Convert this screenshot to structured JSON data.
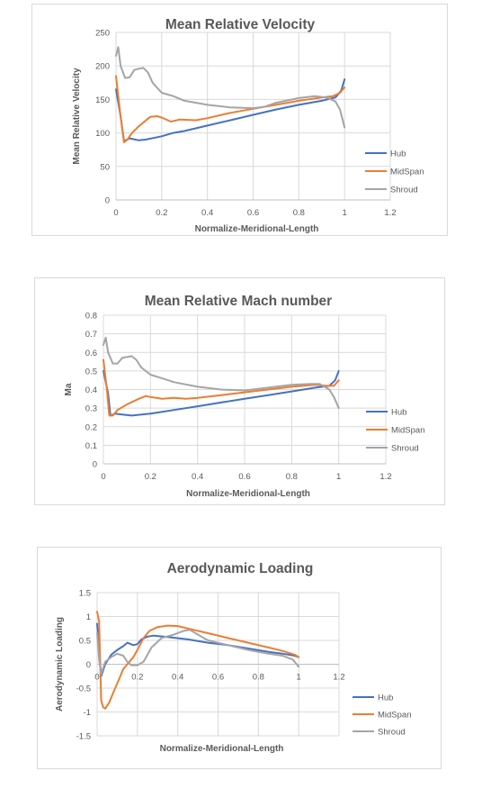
{
  "chart_data": [
    {
      "type": "line",
      "title": "Mean Relative Velocity",
      "xlabel": "Normalize-Meridional-Length",
      "ylabel": "Mean Relative Velocity",
      "xlim": [
        0,
        1.2
      ],
      "ylim": [
        0,
        250
      ],
      "x_ticks": [
        "0",
        "0.2",
        "0.4",
        "0.6",
        "0.8",
        "1",
        "1.2"
      ],
      "y_ticks": [
        "0",
        "50",
        "100",
        "150",
        "200",
        "250"
      ],
      "grid": true,
      "legend_position": "right",
      "series": [
        {
          "name": "Hub",
          "color": "#4472c4",
          "points": [
            [
              0,
              165
            ],
            [
              0.02,
              125
            ],
            [
              0.035,
              88
            ],
            [
              0.06,
              92
            ],
            [
              0.1,
              89
            ],
            [
              0.13,
              90
            ],
            [
              0.2,
              95
            ],
            [
              0.25,
              100
            ],
            [
              0.3,
              103
            ],
            [
              0.4,
              111
            ],
            [
              0.5,
              119
            ],
            [
              0.6,
              127
            ],
            [
              0.7,
              135
            ],
            [
              0.8,
              142
            ],
            [
              0.9,
              148
            ],
            [
              0.96,
              153
            ],
            [
              0.985,
              163
            ],
            [
              1.0,
              180
            ]
          ]
        },
        {
          "name": "MidSpan",
          "color": "#ed7d31",
          "points": [
            [
              0,
              185
            ],
            [
              0.02,
              125
            ],
            [
              0.035,
              86
            ],
            [
              0.05,
              90
            ],
            [
              0.07,
              100
            ],
            [
              0.1,
              110
            ],
            [
              0.15,
              124
            ],
            [
              0.18,
              125
            ],
            [
              0.2,
              123
            ],
            [
              0.24,
              117
            ],
            [
              0.28,
              120
            ],
            [
              0.35,
              119
            ],
            [
              0.4,
              122
            ],
            [
              0.5,
              130
            ],
            [
              0.6,
              136
            ],
            [
              0.7,
              142
            ],
            [
              0.8,
              148
            ],
            [
              0.9,
              153
            ],
            [
              0.95,
              155
            ],
            [
              0.98,
              160
            ],
            [
              1.0,
              168
            ]
          ]
        },
        {
          "name": "Shroud",
          "color": "#a5a5a5",
          "points": [
            [
              0,
              215
            ],
            [
              0.01,
              228
            ],
            [
              0.02,
              200
            ],
            [
              0.04,
              182
            ],
            [
              0.06,
              183
            ],
            [
              0.08,
              194
            ],
            [
              0.1,
              196
            ],
            [
              0.12,
              197
            ],
            [
              0.14,
              190
            ],
            [
              0.16,
              175
            ],
            [
              0.2,
              160
            ],
            [
              0.25,
              155
            ],
            [
              0.3,
              148
            ],
            [
              0.4,
              142
            ],
            [
              0.5,
              138
            ],
            [
              0.6,
              137
            ],
            [
              0.65,
              139
            ],
            [
              0.7,
              145
            ],
            [
              0.8,
              152
            ],
            [
              0.87,
              155
            ],
            [
              0.92,
              153
            ],
            [
              0.96,
              147
            ],
            [
              0.98,
              135
            ],
            [
              1.0,
              108
            ]
          ]
        }
      ]
    },
    {
      "type": "line",
      "title": "Mean Relative Mach number",
      "xlabel": "Normalize-Meridional-Length",
      "ylabel": "Ma",
      "xlim": [
        0,
        1.2
      ],
      "ylim": [
        0,
        0.8
      ],
      "x_ticks": [
        "0",
        "0.2",
        "0.4",
        "0.6",
        "0.8",
        "1",
        "1.2"
      ],
      "y_ticks": [
        "0",
        "0.1",
        "0.2",
        "0.3",
        "0.4",
        "0.5",
        "0.6",
        "0.7",
        "0.8"
      ],
      "grid": true,
      "legend_position": "right",
      "series": [
        {
          "name": "Hub",
          "color": "#4472c4",
          "points": [
            [
              0,
              0.5
            ],
            [
              0.02,
              0.38
            ],
            [
              0.03,
              0.26
            ],
            [
              0.05,
              0.27
            ],
            [
              0.08,
              0.265
            ],
            [
              0.12,
              0.26
            ],
            [
              0.2,
              0.27
            ],
            [
              0.25,
              0.28
            ],
            [
              0.3,
              0.29
            ],
            [
              0.4,
              0.31
            ],
            [
              0.5,
              0.33
            ],
            [
              0.6,
              0.35
            ],
            [
              0.7,
              0.37
            ],
            [
              0.8,
              0.39
            ],
            [
              0.9,
              0.41
            ],
            [
              0.96,
              0.42
            ],
            [
              0.985,
              0.45
            ],
            [
              1.0,
              0.5
            ]
          ]
        },
        {
          "name": "MidSpan",
          "color": "#ed7d31",
          "points": [
            [
              0,
              0.56
            ],
            [
              0.015,
              0.4
            ],
            [
              0.025,
              0.26
            ],
            [
              0.04,
              0.26
            ],
            [
              0.06,
              0.29
            ],
            [
              0.1,
              0.32
            ],
            [
              0.15,
              0.35
            ],
            [
              0.18,
              0.365
            ],
            [
              0.2,
              0.36
            ],
            [
              0.25,
              0.35
            ],
            [
              0.3,
              0.355
            ],
            [
              0.35,
              0.35
            ],
            [
              0.4,
              0.355
            ],
            [
              0.5,
              0.37
            ],
            [
              0.6,
              0.385
            ],
            [
              0.7,
              0.4
            ],
            [
              0.8,
              0.415
            ],
            [
              0.9,
              0.425
            ],
            [
              0.95,
              0.42
            ],
            [
              0.98,
              0.42
            ],
            [
              1.0,
              0.45
            ]
          ]
        },
        {
          "name": "Shroud",
          "color": "#a5a5a5",
          "points": [
            [
              0,
              0.64
            ],
            [
              0.01,
              0.68
            ],
            [
              0.02,
              0.6
            ],
            [
              0.04,
              0.54
            ],
            [
              0.06,
              0.54
            ],
            [
              0.08,
              0.57
            ],
            [
              0.1,
              0.575
            ],
            [
              0.12,
              0.58
            ],
            [
              0.14,
              0.56
            ],
            [
              0.16,
              0.52
            ],
            [
              0.2,
              0.48
            ],
            [
              0.25,
              0.46
            ],
            [
              0.3,
              0.44
            ],
            [
              0.4,
              0.415
            ],
            [
              0.5,
              0.4
            ],
            [
              0.6,
              0.395
            ],
            [
              0.7,
              0.41
            ],
            [
              0.8,
              0.425
            ],
            [
              0.88,
              0.43
            ],
            [
              0.92,
              0.43
            ],
            [
              0.96,
              0.4
            ],
            [
              0.98,
              0.36
            ],
            [
              1.0,
              0.3
            ]
          ]
        }
      ]
    },
    {
      "type": "line",
      "title": "Aerodynamic Loading",
      "xlabel": "Normalize-Meridional-Length",
      "ylabel": "Aerodynamic Loading",
      "xlim": [
        0,
        1.2
      ],
      "ylim": [
        -1.5,
        1.5
      ],
      "x_ticks": [
        "0",
        "0.2",
        "0.4",
        "0.6",
        "0.8",
        "1",
        "1.2"
      ],
      "y_ticks": [
        "-1.5",
        "-1",
        "-0.5",
        "0",
        "0.5",
        "1",
        "1.5"
      ],
      "grid": true,
      "legend_position": "right",
      "series": [
        {
          "name": "Hub",
          "color": "#4472c4",
          "points": [
            [
              0,
              0.85
            ],
            [
              0.01,
              0.3
            ],
            [
              0.02,
              -0.25
            ],
            [
              0.04,
              0.0
            ],
            [
              0.07,
              0.2
            ],
            [
              0.1,
              0.3
            ],
            [
              0.13,
              0.38
            ],
            [
              0.15,
              0.45
            ],
            [
              0.18,
              0.4
            ],
            [
              0.2,
              0.42
            ],
            [
              0.22,
              0.52
            ],
            [
              0.25,
              0.58
            ],
            [
              0.28,
              0.6
            ],
            [
              0.35,
              0.57
            ],
            [
              0.45,
              0.52
            ],
            [
              0.55,
              0.45
            ],
            [
              0.65,
              0.4
            ],
            [
              0.75,
              0.33
            ],
            [
              0.85,
              0.26
            ],
            [
              0.92,
              0.22
            ],
            [
              0.98,
              0.18
            ],
            [
              1.0,
              0.15
            ]
          ]
        },
        {
          "name": "MidSpan",
          "color": "#ed7d31",
          "points": [
            [
              0,
              1.1
            ],
            [
              0.01,
              0.9
            ],
            [
              0.02,
              -0.75
            ],
            [
              0.03,
              -0.9
            ],
            [
              0.04,
              -0.93
            ],
            [
              0.06,
              -0.8
            ],
            [
              0.08,
              -0.6
            ],
            [
              0.11,
              -0.3
            ],
            [
              0.13,
              -0.1
            ],
            [
              0.16,
              0.05
            ],
            [
              0.18,
              0.15
            ],
            [
              0.2,
              0.3
            ],
            [
              0.23,
              0.55
            ],
            [
              0.26,
              0.7
            ],
            [
              0.3,
              0.78
            ],
            [
              0.35,
              0.81
            ],
            [
              0.4,
              0.8
            ],
            [
              0.45,
              0.75
            ],
            [
              0.55,
              0.65
            ],
            [
              0.65,
              0.55
            ],
            [
              0.75,
              0.45
            ],
            [
              0.85,
              0.35
            ],
            [
              0.92,
              0.28
            ],
            [
              0.98,
              0.2
            ],
            [
              1.0,
              0.15
            ]
          ]
        },
        {
          "name": "Shroud",
          "color": "#a5a5a5",
          "points": [
            [
              0,
              0.65
            ],
            [
              0.01,
              0.1
            ],
            [
              0.02,
              -0.2
            ],
            [
              0.04,
              0.05
            ],
            [
              0.07,
              0.15
            ],
            [
              0.1,
              0.22
            ],
            [
              0.13,
              0.18
            ],
            [
              0.15,
              0.05
            ],
            [
              0.17,
              -0.02
            ],
            [
              0.2,
              -0.02
            ],
            [
              0.23,
              0.05
            ],
            [
              0.27,
              0.35
            ],
            [
              0.32,
              0.55
            ],
            [
              0.38,
              0.62
            ],
            [
              0.43,
              0.7
            ],
            [
              0.46,
              0.72
            ],
            [
              0.5,
              0.62
            ],
            [
              0.55,
              0.5
            ],
            [
              0.65,
              0.4
            ],
            [
              0.75,
              0.3
            ],
            [
              0.85,
              0.22
            ],
            [
              0.92,
              0.18
            ],
            [
              0.97,
              0.1
            ],
            [
              1.0,
              -0.05
            ]
          ]
        }
      ]
    }
  ]
}
